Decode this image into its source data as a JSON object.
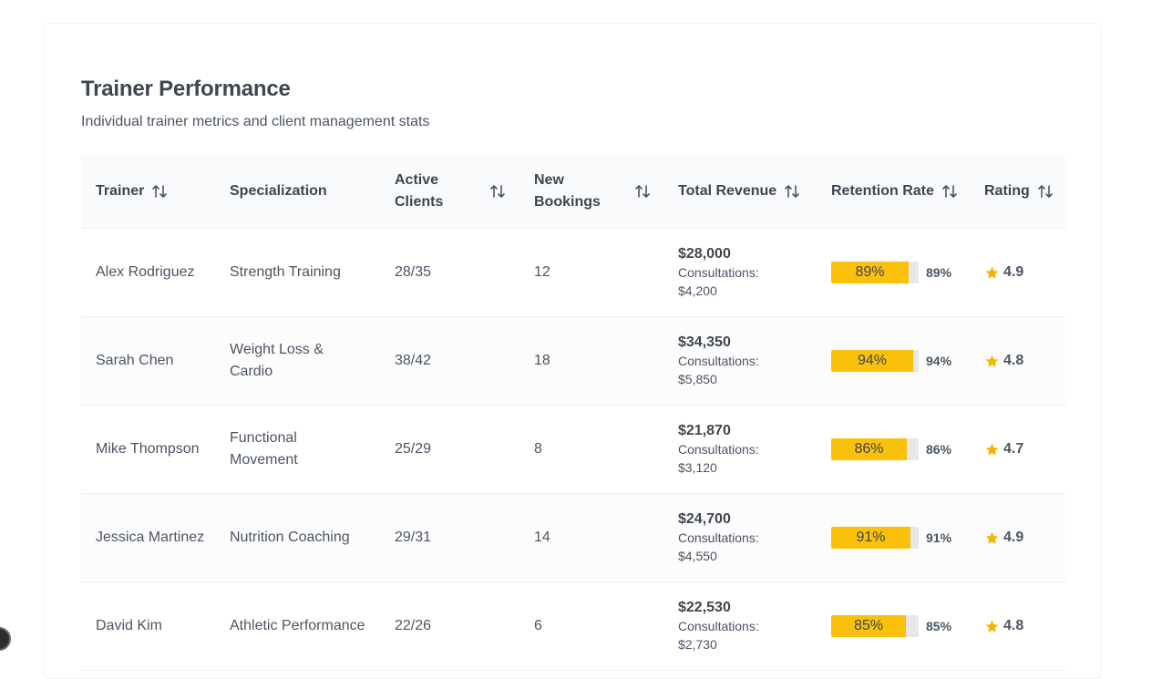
{
  "header": {
    "title": "Trainer Performance",
    "subtitle": "Individual trainer metrics and client management stats"
  },
  "columns": [
    {
      "label": "Trainer",
      "sortable": true
    },
    {
      "label": "Specialization",
      "sortable": false
    },
    {
      "label": "Active Clients",
      "sortable": true
    },
    {
      "label": "New Bookings",
      "sortable": true
    },
    {
      "label": "Total Revenue",
      "sortable": true
    },
    {
      "label": "Retention Rate",
      "sortable": true
    },
    {
      "label": "Rating",
      "sortable": true
    }
  ],
  "rows": [
    {
      "trainer": "Alex Rodriguez",
      "specialization": "Strength Training",
      "clients": "28/35",
      "bookings": "12",
      "revenue": "$28,000",
      "consultations": "Consultations: $4,200",
      "retention": "89%",
      "retention_value": 89,
      "rating": "4.9"
    },
    {
      "trainer": "Sarah Chen",
      "specialization": "Weight Loss & Cardio",
      "clients": "38/42",
      "bookings": "18",
      "revenue": "$34,350",
      "consultations": "Consultations: $5,850",
      "retention": "94%",
      "retention_value": 94,
      "rating": "4.8"
    },
    {
      "trainer": "Mike Thompson",
      "specialization": "Functional Movement",
      "clients": "25/29",
      "bookings": "8",
      "revenue": "$21,870",
      "consultations": "Consultations: $3,120",
      "retention": "86%",
      "retention_value": 86,
      "rating": "4.7"
    },
    {
      "trainer": "Jessica Martinez",
      "specialization": "Nutrition Coaching",
      "clients": "29/31",
      "bookings": "14",
      "revenue": "$24,700",
      "consultations": "Consultations: $4,550",
      "retention": "91%",
      "retention_value": 91,
      "rating": "4.9"
    },
    {
      "trainer": "David Kim",
      "specialization": "Athletic Performance",
      "clients": "22/26",
      "bookings": "6",
      "revenue": "$22,530",
      "consultations": "Consultations: $2,730",
      "retention": "85%",
      "retention_value": 85,
      "rating": "4.8"
    }
  ],
  "icons": {
    "sort": "sort-arrows-icon",
    "rating": "star-icon"
  },
  "colors": {
    "accent": "#f9c10b",
    "track": "#e5e7eb",
    "star": "#f5b400"
  }
}
